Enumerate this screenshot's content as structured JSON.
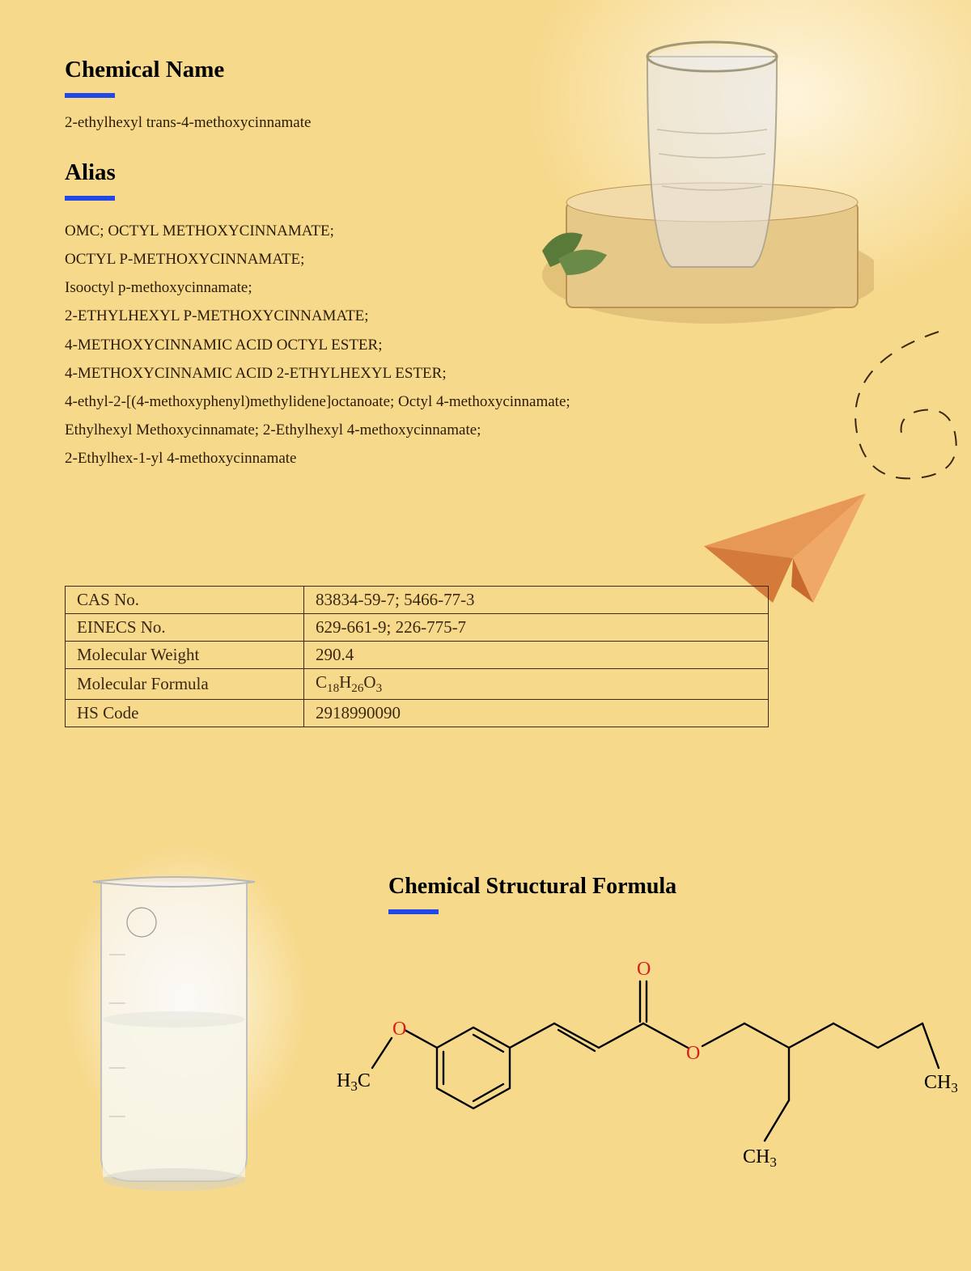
{
  "background_color": "#f7d98c",
  "accent_color": "#2149e8",
  "text_color": "#2a1b05",
  "heading_color": "#000000",
  "table_border_color": "#3a2810",
  "chemical_name": {
    "heading": "Chemical Name",
    "value": "2-ethylhexyl trans-4-methoxycinnamate"
  },
  "alias": {
    "heading": "Alias",
    "lines": [
      "OMC; OCTYL METHOXYCINNAMATE;",
      "OCTYL P-METHOXYCINNAMATE;",
      "Isooctyl p-methoxycinnamate;",
      "2-ETHYLHEXYL P-METHOXYCINNAMATE;",
      "4-METHOXYCINNAMIC ACID OCTYL ESTER;",
      "4-METHOXYCINNAMIC ACID 2-ETHYLHEXYL ESTER;",
      "4-ethyl-2-[(4-methoxyphenyl)methylidene]octanoate; Octyl 4-methoxycinnamate;",
      "Ethylhexyl Methoxycinnamate; 2-Ethylhexyl 4-methoxycinnamate;",
      "2-Ethylhex-1-yl 4-methoxycinnamate"
    ]
  },
  "properties_table": {
    "rows": [
      {
        "label": "CAS No.",
        "value": "83834-59-7; 5466-77-3"
      },
      {
        "label": "EINECS No.",
        "value": "629-661-9; 226-775-7"
      },
      {
        "label": "Molecular Weight",
        "value": "290.4"
      },
      {
        "label": "Molecular Formula",
        "value_html": "C<sub>18</sub>H<sub>26</sub>O<sub>3</sub>",
        "value": "C18H26O3"
      },
      {
        "label": "HS Code",
        "value": "2918990090"
      }
    ]
  },
  "structural": {
    "heading": "Chemical Structural Formula",
    "atom_labels": {
      "O_color": "#d81e1e",
      "C_color": "#000000",
      "label_O": "O",
      "label_H3C": "H₃C",
      "label_CH3": "CH₃"
    },
    "bond_color": "#000000",
    "bond_width": 2.4
  },
  "decorations": {
    "paper_plane_color": "#e08a4c",
    "swirl_color": "#3a2810",
    "glass_rim_color": "#b89860",
    "beaker_outline": "#c8c8c8"
  }
}
